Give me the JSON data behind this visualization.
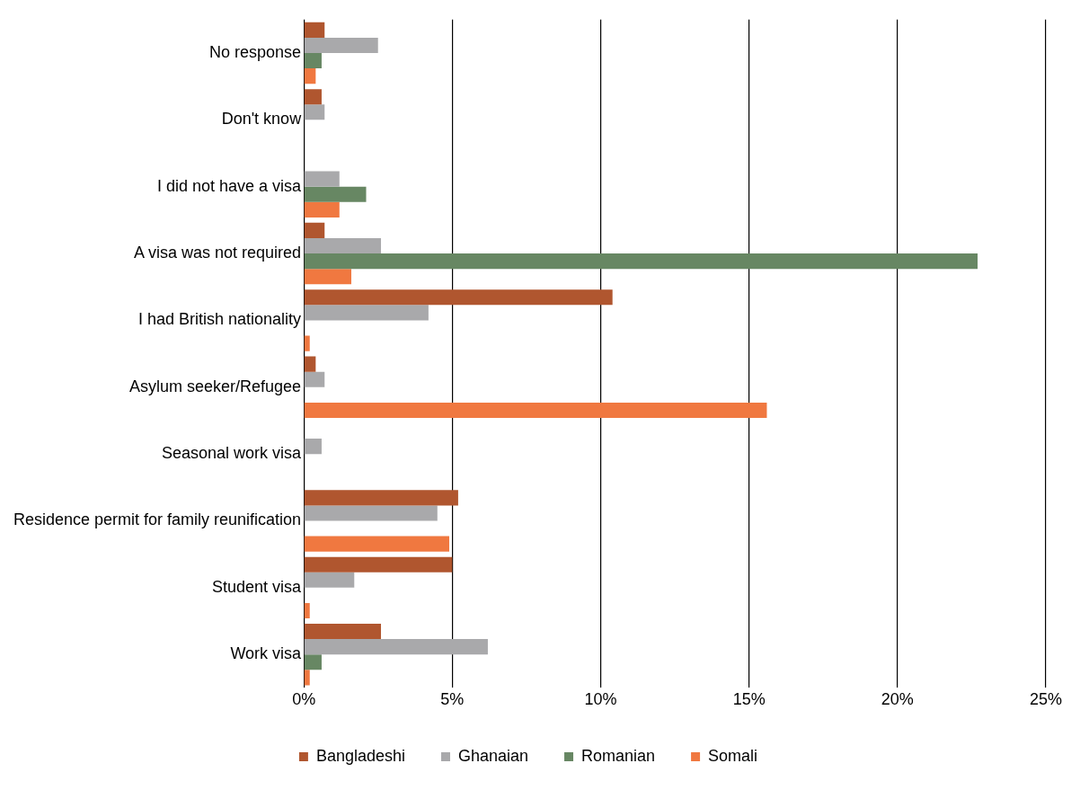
{
  "chart_data": {
    "type": "bar",
    "orientation": "horizontal",
    "categories": [
      "No response",
      "Don't know",
      "I did not have a visa",
      "A visa was not required",
      "I had British nationality",
      "Asylum seeker/Refugee",
      "Seasonal work visa",
      "Residence permit for family reunification",
      "Student visa",
      "Work visa"
    ],
    "series": [
      {
        "name": "Bangladeshi",
        "color": "#b0562f",
        "values": [
          0.7,
          0.6,
          null,
          0.7,
          10.4,
          0.4,
          null,
          5.2,
          5.0,
          2.6
        ]
      },
      {
        "name": "Ghanaian",
        "color": "#a9a9ab",
        "values": [
          2.5,
          0.7,
          1.2,
          2.6,
          4.2,
          0.7,
          0.6,
          4.5,
          1.7,
          6.2
        ]
      },
      {
        "name": "Romanian",
        "color": "#678763",
        "values": [
          0.6,
          null,
          2.1,
          22.7,
          null,
          null,
          null,
          null,
          null,
          0.6
        ]
      },
      {
        "name": "Somali",
        "color": "#f07840",
        "values": [
          0.4,
          null,
          1.2,
          1.6,
          0.2,
          15.6,
          null,
          4.9,
          0.2,
          0.2
        ]
      }
    ],
    "xlim": [
      0,
      25
    ],
    "xticks": [
      {
        "value": 0,
        "label": "0%"
      },
      {
        "value": 5,
        "label": "5%"
      },
      {
        "value": 10,
        "label": "10%"
      },
      {
        "value": 15,
        "label": "15%"
      },
      {
        "value": 20,
        "label": "20%"
      },
      {
        "value": 25,
        "label": "25%"
      }
    ],
    "grid": "x",
    "legend": "bottom",
    "marker": "square"
  }
}
